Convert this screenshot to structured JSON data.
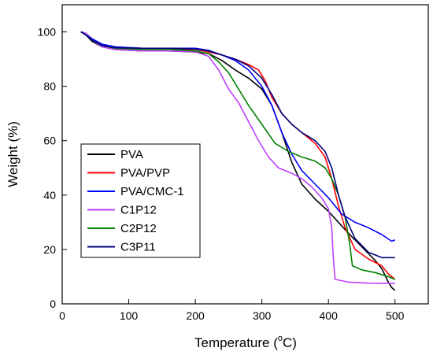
{
  "chart_data": {
    "type": "line",
    "title": "",
    "xlabel": "Temperature (°C)",
    "xlabel_main": "Temperature (",
    "xlabel_sup": "o",
    "xlabel_end": "C)",
    "ylabel": "Weight (%)",
    "xlim": [
      0,
      550
    ],
    "ylim": [
      0,
      110
    ],
    "xticks": [
      0,
      100,
      200,
      300,
      400,
      500
    ],
    "yticks": [
      0,
      20,
      40,
      60,
      80,
      100
    ],
    "grid": false,
    "legend_position": "left",
    "series": [
      {
        "name": "PVA",
        "color": "#000000",
        "points": [
          [
            28,
            100
          ],
          [
            35,
            99
          ],
          [
            45,
            96.5
          ],
          [
            60,
            94.5
          ],
          [
            80,
            93.5
          ],
          [
            120,
            93
          ],
          [
            160,
            93
          ],
          [
            200,
            92.6
          ],
          [
            220,
            92
          ],
          [
            240,
            89.5
          ],
          [
            260,
            86
          ],
          [
            280,
            83
          ],
          [
            300,
            79
          ],
          [
            315,
            73
          ],
          [
            330,
            63
          ],
          [
            345,
            52
          ],
          [
            360,
            44
          ],
          [
            380,
            38.5
          ],
          [
            400,
            34
          ],
          [
            415,
            30
          ],
          [
            430,
            26
          ],
          [
            450,
            21
          ],
          [
            470,
            16
          ],
          [
            480,
            13
          ],
          [
            490,
            8
          ],
          [
            495,
            6
          ],
          [
            500,
            5
          ]
        ]
      },
      {
        "name": "PVA/PVP",
        "color": "#ff0000",
        "points": [
          [
            28,
            100
          ],
          [
            35,
            99.5
          ],
          [
            45,
            97
          ],
          [
            60,
            95
          ],
          [
            80,
            94
          ],
          [
            120,
            93.6
          ],
          [
            160,
            93.6
          ],
          [
            200,
            93.6
          ],
          [
            220,
            92.6
          ],
          [
            240,
            91.5
          ],
          [
            260,
            90
          ],
          [
            280,
            88
          ],
          [
            295,
            86
          ],
          [
            305,
            82
          ],
          [
            315,
            76
          ],
          [
            330,
            70
          ],
          [
            345,
            66
          ],
          [
            360,
            63
          ],
          [
            380,
            59
          ],
          [
            395,
            54
          ],
          [
            405,
            46
          ],
          [
            415,
            36
          ],
          [
            425,
            28
          ],
          [
            440,
            20
          ],
          [
            460,
            16.5
          ],
          [
            480,
            14
          ],
          [
            490,
            11
          ],
          [
            500,
            9
          ]
        ]
      },
      {
        "name": "PVA/CMC-1",
        "color": "#0000ff",
        "points": [
          [
            28,
            100
          ],
          [
            35,
            99.5
          ],
          [
            45,
            97.5
          ],
          [
            60,
            95.5
          ],
          [
            80,
            94.5
          ],
          [
            120,
            94
          ],
          [
            160,
            94
          ],
          [
            200,
            94
          ],
          [
            220,
            93.2
          ],
          [
            240,
            91.5
          ],
          [
            260,
            89.5
          ],
          [
            280,
            86
          ],
          [
            300,
            80
          ],
          [
            315,
            73
          ],
          [
            330,
            63
          ],
          [
            345,
            55
          ],
          [
            360,
            49
          ],
          [
            380,
            44
          ],
          [
            400,
            39
          ],
          [
            420,
            33
          ],
          [
            440,
            30
          ],
          [
            460,
            28
          ],
          [
            480,
            25.5
          ],
          [
            495,
            23
          ],
          [
            500,
            23.5
          ]
        ]
      },
      {
        "name": "C1P12",
        "color": "#bf3fff",
        "points": [
          [
            28,
            100
          ],
          [
            35,
            99.5
          ],
          [
            45,
            97
          ],
          [
            60,
            94.5
          ],
          [
            80,
            93.5
          ],
          [
            120,
            93
          ],
          [
            160,
            93
          ],
          [
            200,
            92.7
          ],
          [
            220,
            91
          ],
          [
            235,
            86
          ],
          [
            250,
            79
          ],
          [
            265,
            74
          ],
          [
            280,
            67
          ],
          [
            295,
            60
          ],
          [
            310,
            54
          ],
          [
            325,
            50
          ],
          [
            345,
            48
          ],
          [
            360,
            46
          ],
          [
            375,
            43
          ],
          [
            390,
            39
          ],
          [
            400,
            35
          ],
          [
            405,
            28
          ],
          [
            407,
            18
          ],
          [
            410,
            9
          ],
          [
            430,
            8
          ],
          [
            460,
            7.6
          ],
          [
            500,
            7.5
          ]
        ]
      },
      {
        "name": "C2P12",
        "color": "#008000",
        "points": [
          [
            28,
            100
          ],
          [
            35,
            99
          ],
          [
            45,
            97
          ],
          [
            60,
            95
          ],
          [
            80,
            94
          ],
          [
            120,
            93.6
          ],
          [
            160,
            93.6
          ],
          [
            200,
            93
          ],
          [
            220,
            92
          ],
          [
            235,
            89
          ],
          [
            250,
            85
          ],
          [
            265,
            79
          ],
          [
            280,
            73
          ],
          [
            300,
            66
          ],
          [
            320,
            59
          ],
          [
            340,
            56
          ],
          [
            360,
            54
          ],
          [
            380,
            52.5
          ],
          [
            395,
            50
          ],
          [
            405,
            46
          ],
          [
            415,
            40
          ],
          [
            425,
            32
          ],
          [
            432,
            22
          ],
          [
            436,
            14
          ],
          [
            450,
            12.5
          ],
          [
            470,
            11.5
          ],
          [
            490,
            10
          ],
          [
            500,
            9
          ]
        ]
      },
      {
        "name": "C3P11",
        "color": "#000080",
        "points": [
          [
            28,
            100
          ],
          [
            35,
            99
          ],
          [
            45,
            97
          ],
          [
            60,
            95
          ],
          [
            80,
            94.2
          ],
          [
            120,
            94
          ],
          [
            160,
            94
          ],
          [
            200,
            93.7
          ],
          [
            220,
            93
          ],
          [
            240,
            91.5
          ],
          [
            260,
            90
          ],
          [
            280,
            87.5
          ],
          [
            300,
            83
          ],
          [
            315,
            77
          ],
          [
            330,
            70
          ],
          [
            345,
            66
          ],
          [
            360,
            63
          ],
          [
            380,
            60
          ],
          [
            395,
            56
          ],
          [
            405,
            50
          ],
          [
            415,
            40
          ],
          [
            425,
            32
          ],
          [
            440,
            24
          ],
          [
            460,
            19
          ],
          [
            480,
            17
          ],
          [
            500,
            17
          ]
        ]
      }
    ]
  }
}
